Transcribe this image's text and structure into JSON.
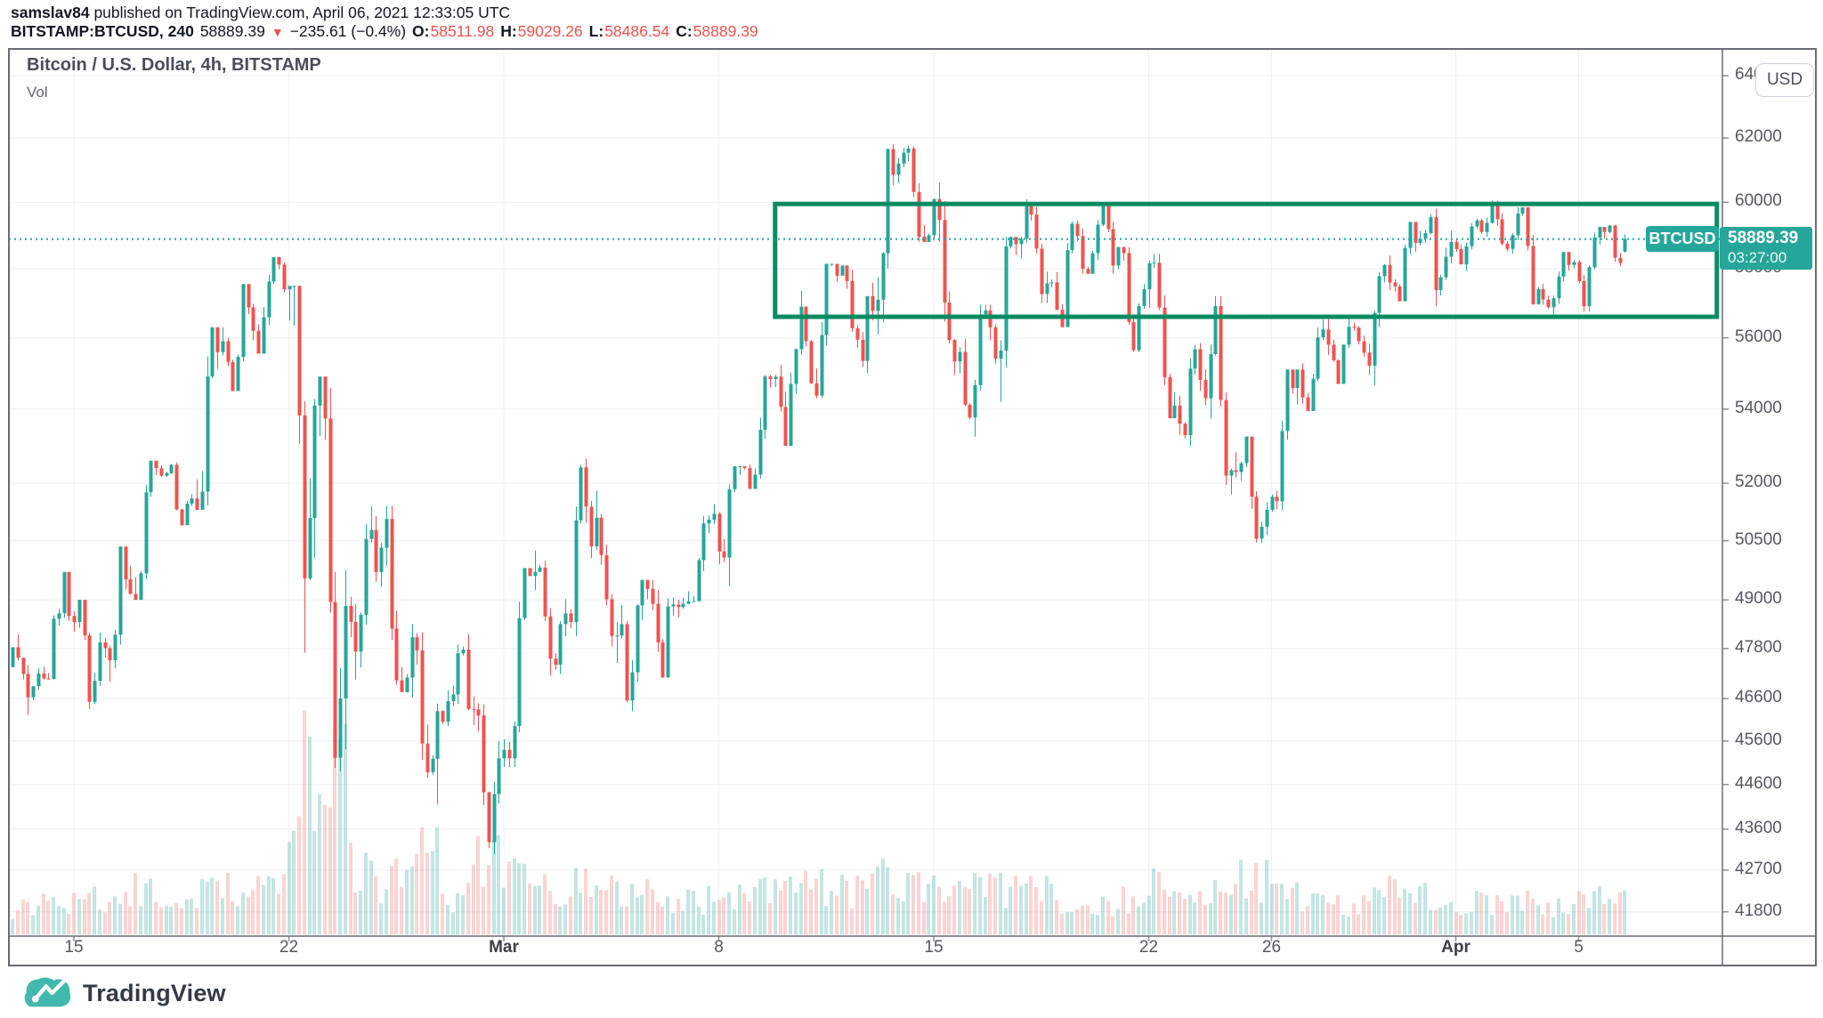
{
  "header": {
    "byline_user": "samslav84",
    "byline_rest": "published on TradingView.com, April 06, 2021 12:33:05 UTC",
    "symbol": "BITSTAMP:BTCUSD, 240",
    "last": "58889.39",
    "direction_icon": "down-triangle",
    "change": "−235.61 (−0.4%)",
    "o_label": "O:",
    "o": "58511.98",
    "h_label": "H:",
    "h": "59029.26",
    "l_label": "L:",
    "l": "58486.54",
    "c_label": "C:",
    "c": "58889.39"
  },
  "legend": {
    "title": "Bitcoin / U.S. Dollar, 4h, BITSTAMP",
    "indicator": "Vol"
  },
  "currency_button": "USD",
  "flags": {
    "symbol": "BTCUSD",
    "price": "58889.39",
    "countdown": "03:27:00"
  },
  "watermark": {
    "text": "TradingView"
  },
  "colors": {
    "up": "#26a69a",
    "down": "#ef5350",
    "volume_up": "rgba(38,166,154,0.28)",
    "volume_down": "rgba(239,83,80,0.25)",
    "accent_flag": "#26a69a",
    "rectangle": "#0b8b62",
    "grid": "#edf0f6",
    "axis_tick": "#8b909c",
    "frame": "#696c75",
    "dark_text": "#131722",
    "red_text": "#ef5350",
    "logo_teal": "#41b8ad"
  },
  "chart_data": {
    "type": "candlestick",
    "title": "Bitcoin / U.S. Dollar, 4h, BITSTAMP",
    "symbol": "BITSTAMP:BTCUSD",
    "interval": "4h",
    "price_scale": "log",
    "current_price": 58889.39,
    "last_bar": {
      "o": 58511.98,
      "h": 59029.26,
      "l": 58486.54,
      "c": 58889.39
    },
    "price_axis_ticks": [
      64000,
      62000,
      60000,
      58000,
      56000,
      54000,
      52000,
      50500,
      49000,
      47800,
      46600,
      45600,
      44600,
      43600,
      42700,
      41800
    ],
    "time_axis_ticks": [
      {
        "label": "15",
        "date": "2021-02-15"
      },
      {
        "label": "22",
        "date": "2021-02-22"
      },
      {
        "label": "Mar",
        "date": "2021-03-01",
        "month": true
      },
      {
        "label": "8",
        "date": "2021-03-08"
      },
      {
        "label": "15",
        "date": "2021-03-15"
      },
      {
        "label": "22",
        "date": "2021-03-22"
      },
      {
        "label": "26",
        "date": "2021-03-26"
      },
      {
        "label": "Apr",
        "date": "2021-04-01",
        "month": true
      },
      {
        "label": "5",
        "date": "2021-04-05"
      }
    ],
    "rectangle_drawing": {
      "from": "2021-03-09T20:00",
      "to": "2021-04-09T12:00",
      "price_top": 59950,
      "price_bottom": 56600
    },
    "daily_format": [
      "date",
      "open",
      "high",
      "low",
      "close",
      "rel_volume",
      "bars_if_partial"
    ],
    "daily": [
      [
        "2021-02-13",
        47350,
        48150,
        46210,
        47200,
        0.18
      ],
      [
        "2021-02-14",
        47200,
        49700,
        47050,
        48600,
        0.2
      ],
      [
        "2021-02-15",
        48600,
        49000,
        46350,
        47950,
        0.22
      ],
      [
        "2021-02-16",
        47950,
        50350,
        47000,
        49150,
        0.25
      ],
      [
        "2021-02-17",
        49150,
        52600,
        49000,
        52200,
        0.28
      ],
      [
        "2021-02-18",
        52200,
        52550,
        50900,
        51600,
        0.2
      ],
      [
        "2021-02-19",
        51600,
        56300,
        51300,
        55900,
        0.28
      ],
      [
        "2021-02-20",
        55900,
        57550,
        54500,
        56200,
        0.3
      ],
      [
        "2021-02-21",
        56200,
        58350,
        55550,
        57400,
        0.28
      ],
      [
        "2021-02-22",
        57400,
        57500,
        47700,
        54100,
        1.0
      ],
      [
        "2021-02-23",
        54100,
        54900,
        44900,
        48850,
        0.95
      ],
      [
        "2021-02-24",
        48850,
        51400,
        47050,
        49700,
        0.45
      ],
      [
        "2021-02-25",
        49700,
        51400,
        46750,
        47100,
        0.35
      ],
      [
        "2021-02-26",
        47100,
        48400,
        44150,
        46300,
        0.5
      ],
      [
        "2021-02-27",
        46300,
        48150,
        45950,
        46350,
        0.25
      ],
      [
        "2021-02-28",
        46350,
        46650,
        43050,
        45200,
        0.48
      ],
      [
        "2021-03-01",
        45200,
        49800,
        45000,
        49600,
        0.35
      ],
      [
        "2021-03-02",
        49600,
        50250,
        47150,
        48400,
        0.3
      ],
      [
        "2021-03-03",
        48400,
        52650,
        48100,
        50350,
        0.32
      ],
      [
        "2021-03-04",
        50350,
        51800,
        47450,
        48400,
        0.28
      ],
      [
        "2021-03-05",
        48400,
        49500,
        46300,
        48900,
        0.3
      ],
      [
        "2021-03-06",
        48900,
        49250,
        47100,
        48900,
        0.2
      ],
      [
        "2021-03-07",
        48900,
        51450,
        48900,
        51200,
        0.22
      ],
      [
        "2021-03-08",
        51200,
        52450,
        49350,
        52400,
        0.25
      ],
      [
        "2021-03-09",
        52400,
        54950,
        51850,
        54900,
        0.28
      ],
      [
        "2021-03-10",
        54900,
        57350,
        53000,
        55900,
        0.35
      ],
      [
        "2021-03-11",
        55900,
        58150,
        54300,
        57800,
        0.3
      ],
      [
        "2021-03-12",
        57800,
        58100,
        55000,
        57200,
        0.28
      ],
      [
        "2021-03-13",
        57200,
        61800,
        56100,
        61200,
        0.35
      ],
      [
        "2021-03-14",
        61200,
        61750,
        58800,
        59000,
        0.3
      ],
      [
        "2021-03-15",
        59000,
        60600,
        54950,
        55600,
        0.35
      ],
      [
        "2021-03-16",
        55600,
        56950,
        53250,
        56300,
        0.3
      ],
      [
        "2021-03-17",
        56300,
        58950,
        54200,
        58900,
        0.28
      ],
      [
        "2021-03-18",
        58900,
        60100,
        57000,
        57600,
        0.28
      ],
      [
        "2021-03-19",
        57600,
        59450,
        56300,
        58000,
        0.22
      ],
      [
        "2021-03-20",
        58000,
        59900,
        57850,
        58100,
        0.2
      ],
      [
        "2021-03-21",
        58100,
        58650,
        55600,
        57400,
        0.22
      ],
      [
        "2021-03-22",
        57400,
        58450,
        53750,
        54100,
        0.3
      ],
      [
        "2021-03-23",
        54100,
        55850,
        53000,
        54300,
        0.25
      ],
      [
        "2021-03-24",
        54300,
        57200,
        51700,
        52300,
        0.3
      ],
      [
        "2021-03-25",
        52300,
        53250,
        50450,
        51300,
        0.35
      ],
      [
        "2021-03-26",
        51300,
        55100,
        51250,
        55100,
        0.28
      ],
      [
        "2021-03-27",
        55100,
        56650,
        53950,
        55800,
        0.22
      ],
      [
        "2021-03-28",
        55800,
        56550,
        54700,
        55900,
        0.18
      ],
      [
        "2021-03-29",
        55900,
        58400,
        54650,
        57600,
        0.28
      ],
      [
        "2021-03-30",
        57600,
        59400,
        57050,
        58900,
        0.25
      ],
      [
        "2021-03-31",
        58900,
        59800,
        56900,
        58800,
        0.28
      ],
      [
        "2021-04-01",
        58800,
        59500,
        57950,
        59100,
        0.2
      ],
      [
        "2021-04-02",
        59100,
        60050,
        58450,
        59000,
        0.22
      ],
      [
        "2021-04-03",
        59000,
        59850,
        56950,
        57100,
        0.22
      ],
      [
        "2021-04-04",
        57100,
        58500,
        56550,
        58200,
        0.18
      ],
      [
        "2021-04-05",
        58200,
        59250,
        56750,
        59100,
        0.25
      ],
      [
        "2021-04-06",
        59100,
        59300,
        57850,
        58889.39,
        0.2,
        4
      ]
    ]
  }
}
